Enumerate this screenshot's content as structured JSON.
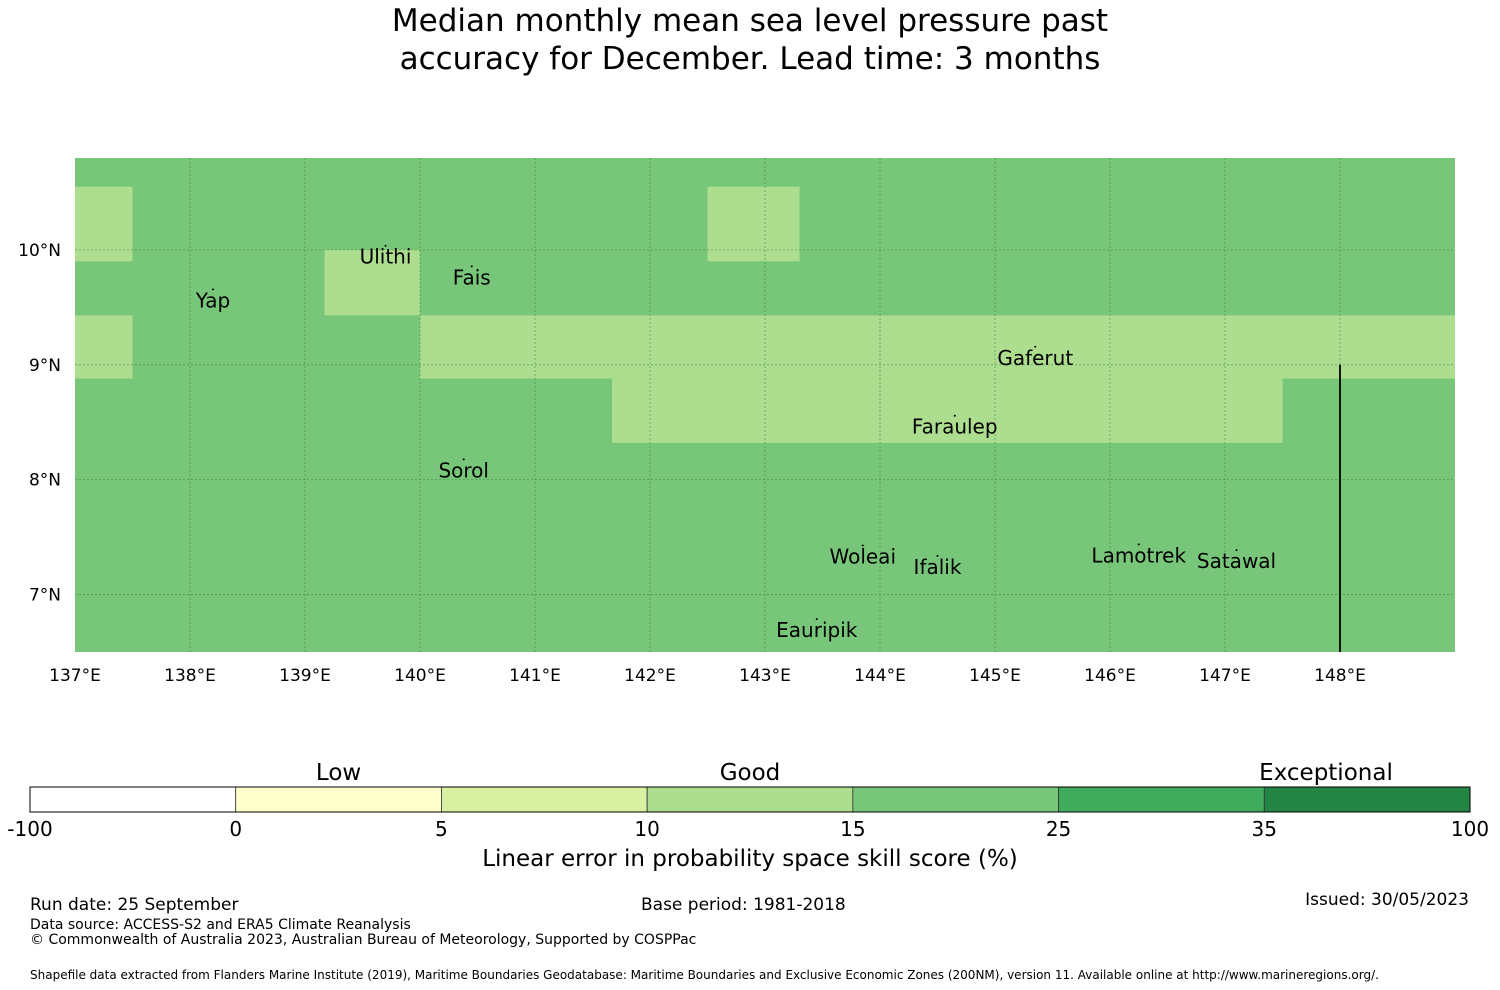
{
  "title_line1": "Median monthly mean sea level pressure past",
  "title_line2": "accuracy for December. Lead time: 3 months",
  "map": {
    "lon_range": [
      137,
      149
    ],
    "lat_range": [
      6.5,
      10.8
    ],
    "lon_ticks": [
      "137°E",
      "138°E",
      "139°E",
      "140°E",
      "141°E",
      "142°E",
      "143°E",
      "144°E",
      "145°E",
      "146°E",
      "147°E",
      "148°E"
    ],
    "lat_ticks": [
      "10°N",
      "9°N",
      "8°N",
      "7°N"
    ],
    "base_color": "#78c679",
    "light_color": "#addd8e",
    "light_cells": [
      {
        "lon0": 137.0,
        "lon1": 137.5,
        "lat0": 9.9,
        "lat1": 10.55
      },
      {
        "lon0": 142.5,
        "lon1": 143.3,
        "lat0": 9.9,
        "lat1": 10.55
      },
      {
        "lon0": 139.17,
        "lon1": 140.0,
        "lat0": 9.43,
        "lat1": 10.0
      },
      {
        "lon0": 137.0,
        "lon1": 137.5,
        "lat0": 8.88,
        "lat1": 9.43
      },
      {
        "lon0": 140.0,
        "lon1": 149.0,
        "lat0": 8.88,
        "lat1": 9.43
      },
      {
        "lon0": 141.67,
        "lon1": 147.5,
        "lat0": 8.32,
        "lat1": 8.88
      }
    ],
    "boundary_line": {
      "lon": 148.0,
      "lat0": 6.5,
      "lat1": 9.0
    },
    "places": [
      {
        "name": "Ulithi",
        "lon": 139.7,
        "lat": 9.88
      },
      {
        "name": "Fais",
        "lon": 140.45,
        "lat": 9.7
      },
      {
        "name": "Yap",
        "lon": 138.2,
        "lat": 9.5
      },
      {
        "name": "Gaferut",
        "lon": 145.35,
        "lat": 9.0
      },
      {
        "name": "Faraulep",
        "lon": 144.65,
        "lat": 8.4
      },
      {
        "name": "Sorol",
        "lon": 140.38,
        "lat": 8.02
      },
      {
        "name": "Woleai",
        "lon": 143.85,
        "lat": 7.27
      },
      {
        "name": "Lamotrek",
        "lon": 146.25,
        "lat": 7.28
      },
      {
        "name": "Satawal",
        "lon": 147.1,
        "lat": 7.23
      },
      {
        "name": "Ifalik",
        "lon": 144.5,
        "lat": 7.18
      },
      {
        "name": "Eauripik",
        "lon": 143.45,
        "lat": 6.63
      }
    ]
  },
  "colorbar": {
    "categories": [
      {
        "label": "Low",
        "at_tick": 1.5
      },
      {
        "label": "Good",
        "at_tick": 3.5
      },
      {
        "label": "Exceptional",
        "at_tick": 6.3
      }
    ],
    "ticks": [
      "-100",
      "0",
      "5",
      "10",
      "15",
      "25",
      "35",
      "100"
    ],
    "colors": [
      "#ffffff",
      "#ffffcc",
      "#d9f0a3",
      "#addd8e",
      "#78c679",
      "#41ab5d",
      "#238443"
    ],
    "label": "Linear error in probability space skill score (%)"
  },
  "footer": {
    "run_date": "Run date: 25 September",
    "base_period": "Base period: 1981-2018",
    "issued": "Issued: 30/05/2023",
    "data_source": "Data source: ACCESS-S2 and ERA5 Climate Reanalysis",
    "copyright": "© Commonwealth of Australia 2023, Australian Bureau of Meteorology, Supported by COSPPac",
    "shapefile": "Shapefile data extracted from Flanders Marine Institute (2019), Maritime Boundaries Geodatabase: Maritime Boundaries and Exclusive Economic Zones (200NM), version 11. Available online at http://www.marineregions.org/."
  }
}
